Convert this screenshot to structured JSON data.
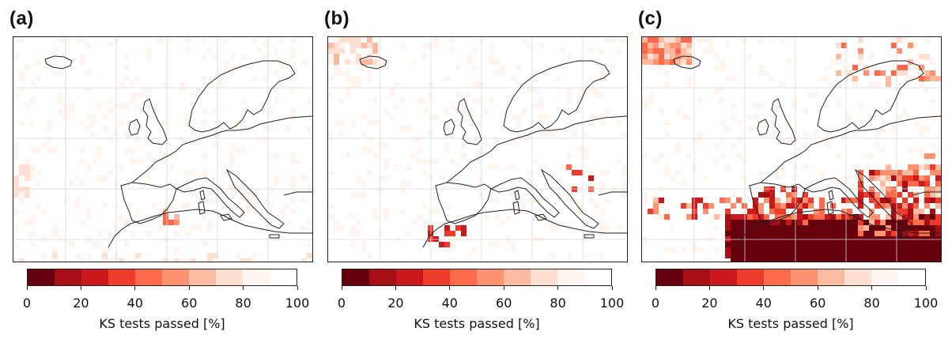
{
  "colors": {
    "scale": [
      "#67000d",
      "#a50f15",
      "#cb181d",
      "#ef3b2c",
      "#fb6a4a",
      "#fc9272",
      "#fcbba1",
      "#fee0d2",
      "#fff5f0",
      "#ffffff"
    ],
    "coast": "#222222",
    "grid": "#d8d8d8"
  },
  "chart_data": [
    {
      "type": "heatmap",
      "panel_label": "(a)",
      "colorbar": {
        "label": "KS tests passed [%]",
        "ticks": [
          "0",
          "20",
          "40",
          "60",
          "80",
          "100"
        ],
        "range": [
          0,
          100
        ],
        "bins": 10
      },
      "background_level": "high",
      "notable_low_regions": [
        {
          "description": "small patches near Spain south-east coast",
          "approx_value": 50
        },
        {
          "description": "west Atlantic edge near Azores latitude",
          "approx_value": 70
        },
        {
          "description": "north African coast near Morocco",
          "approx_value": 70
        }
      ]
    },
    {
      "type": "heatmap",
      "panel_label": "(b)",
      "colorbar": {
        "label": "KS tests passed [%]",
        "ticks": [
          "0",
          "20",
          "40",
          "60",
          "80",
          "100"
        ],
        "range": [
          0,
          100
        ],
        "bins": 10
      },
      "background_level": "high",
      "notable_low_regions": [
        {
          "description": "north Morocco / Strait of Gibraltar",
          "approx_value": 20
        },
        {
          "description": "north-west corner Atlantic",
          "approx_value": 60
        },
        {
          "description": "southern Balkans",
          "approx_value": 30
        }
      ]
    },
    {
      "type": "heatmap",
      "panel_label": "(c)",
      "colorbar": {
        "label": "KS tests passed [%]",
        "ticks": [
          "0",
          "20",
          "40",
          "60",
          "80",
          "100"
        ],
        "range": [
          0,
          100
        ],
        "bins": 10
      },
      "background_level": "high",
      "notable_low_regions": [
        {
          "description": "North Africa / Sahara",
          "approx_value": 0
        },
        {
          "description": "Iberian Peninsula",
          "approx_value": 20
        },
        {
          "description": "Eastern Mediterranean / Balkans / Turkey",
          "approx_value": 20
        },
        {
          "description": "northern Scandinavia",
          "approx_value": 50
        }
      ]
    }
  ]
}
